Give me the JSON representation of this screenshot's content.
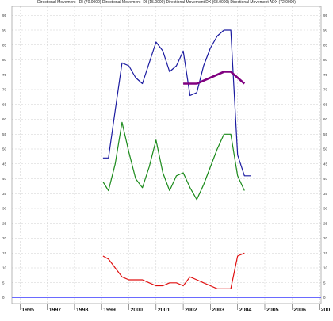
{
  "chart_data": {
    "type": "line",
    "title": "Directional Movement +DI (70.0000) Directional Movement -DI (15.0000) Directional Movement DX (68.0000) Directional Movement ADX (72.0000)",
    "xlabel": "",
    "ylabel": "",
    "x_ticks": [
      "1995",
      "1997",
      "1998",
      "1999",
      "2000",
      "2001",
      "2002",
      "2003",
      "2004",
      "2005",
      "2006",
      "200"
    ],
    "y_ticks": [
      0,
      5,
      10,
      15,
      20,
      25,
      30,
      35,
      40,
      45,
      50,
      55,
      60,
      65,
      70,
      75,
      80,
      85,
      90,
      95
    ],
    "ylim": [
      -2,
      98
    ],
    "grid": true,
    "zero_line": {
      "value": 0,
      "color": "#6a6aff"
    },
    "series": [
      {
        "color": "#1a1aa0",
        "x": [
          1999.05,
          1999.25,
          1999.5,
          1999.75,
          2000.0,
          2000.25,
          2000.5,
          2000.75,
          2001.0,
          2001.25,
          2001.5,
          2001.75,
          2002.0,
          2002.25,
          2002.5,
          2002.75,
          2003.0,
          2003.25,
          2003.5,
          2003.75,
          2004.0,
          2004.25,
          2004.5
        ],
        "y": [
          47,
          47,
          63,
          79,
          78,
          74,
          72,
          79,
          86,
          83,
          76,
          78,
          83,
          68,
          69,
          78,
          84,
          88,
          90,
          90,
          48,
          41,
          41
        ]
      },
      {
        "color": "#1a8a1a",
        "x": [
          1999.05,
          1999.25,
          1999.5,
          1999.75,
          2000.0,
          2000.25,
          2000.5,
          2000.75,
          2001.0,
          2001.25,
          2001.5,
          2001.75,
          2002.0,
          2002.25,
          2002.5,
          2002.75,
          2003.0,
          2003.25,
          2003.5,
          2003.75,
          2004.0,
          2004.25
        ],
        "y": [
          39,
          36,
          45,
          59,
          49,
          40,
          37,
          44,
          53,
          42,
          36,
          41,
          42,
          37,
          33,
          38,
          44,
          50,
          55,
          55,
          41,
          36
        ]
      },
      {
        "color": "#e01010",
        "x": [
          1999.05,
          1999.25,
          1999.5,
          1999.75,
          2000.0,
          2000.25,
          2000.5,
          2000.75,
          2001.0,
          2001.25,
          2001.5,
          2001.75,
          2002.0,
          2002.25,
          2002.5,
          2002.75,
          2003.0,
          2003.25,
          2003.5,
          2003.75,
          2004.0,
          2004.25
        ],
        "y": [
          14,
          13,
          10,
          7,
          6,
          6,
          6,
          5,
          4,
          4,
          5,
          5,
          4,
          7,
          6,
          5,
          4,
          3,
          3,
          3,
          14,
          15
        ]
      },
      {
        "color": "#800080",
        "x": [
          2002.0,
          2002.5,
          2003.0,
          2003.5,
          2003.75,
          2004.25
        ],
        "y": [
          72,
          72,
          74,
          76,
          76,
          72
        ]
      }
    ]
  }
}
